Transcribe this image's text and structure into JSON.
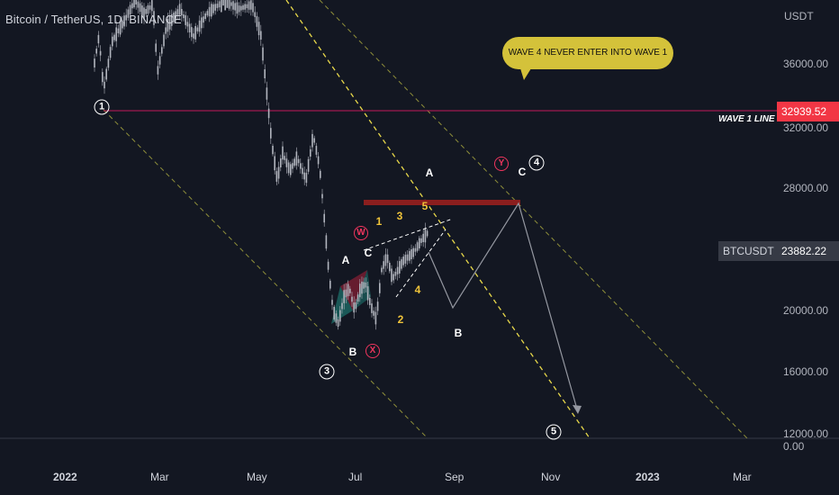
{
  "header": {
    "symbol_title": "Bitcoin / TetherUS, 1D, BINANCE"
  },
  "price_axis": {
    "currency": "USDT",
    "labels": [
      "36000.00",
      "32000.00",
      "28000.00",
      "20000.00",
      "16000.00",
      "12000.00",
      "0.00"
    ],
    "wave1_line_price": "32939.52",
    "current_symbol": "BTCUSDT",
    "current_price": "23882.22"
  },
  "time_axis": {
    "labels": [
      "2022",
      "Mar",
      "May",
      "Jul",
      "Sep",
      "Nov",
      "2023",
      "Mar"
    ]
  },
  "annotations": {
    "note_text": "WAVE 4 NEVER ENTER INTO WAVE 1",
    "wave1_line_label": "WAVE 1 LINE",
    "circled_white": [
      "1",
      "3",
      "4",
      "5"
    ],
    "circled_red": [
      "W",
      "X",
      "Y"
    ],
    "white_labels": [
      "A",
      "C",
      "B",
      "A",
      "C",
      "B"
    ],
    "yellow_labels": [
      "1",
      "3",
      "5",
      "2",
      "4"
    ]
  },
  "colors": {
    "background": "#131722",
    "wave1_line": "#f23645",
    "resistance_zone": "#8b1e1e",
    "channel_line": "#c8c83c",
    "candles": "#b2b5be",
    "accent_red": "#f0355e",
    "accent_yellow": "#f0c43a",
    "note_bg": "#d4c23a"
  }
}
